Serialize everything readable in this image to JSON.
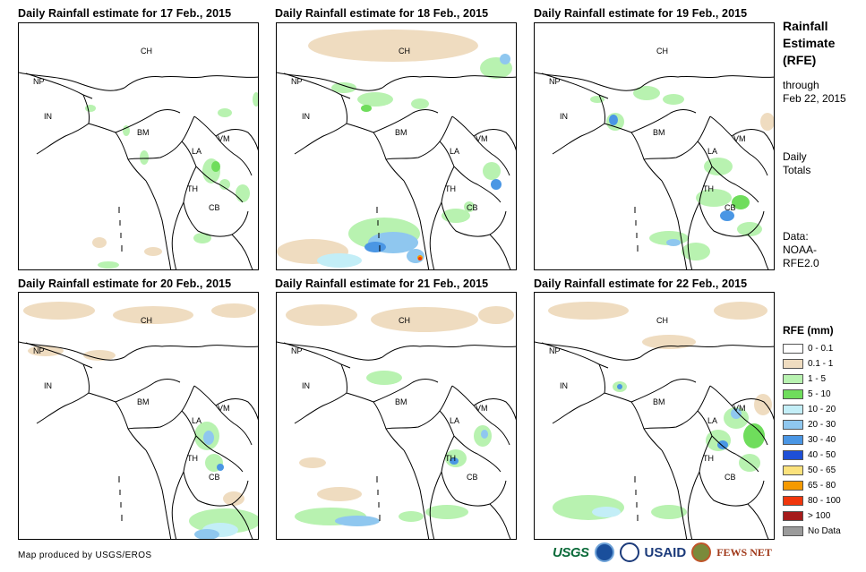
{
  "panels": [
    {
      "title": "Daily Rainfall estimate for 17 Feb., 2015"
    },
    {
      "title": "Daily Rainfall estimate for 18 Feb., 2015"
    },
    {
      "title": "Daily Rainfall estimate for 19 Feb., 2015"
    },
    {
      "title": "Daily Rainfall estimate for 20 Feb., 2015"
    },
    {
      "title": "Daily Rainfall estimate for 21 Feb., 2015"
    },
    {
      "title": "Daily Rainfall estimate for 22 Feb., 2015"
    }
  ],
  "country_labels": {
    "ch": "CH",
    "np": "NP",
    "in": "IN",
    "bm": "BM",
    "la": "LA",
    "vm": "VM",
    "th": "TH",
    "cb": "CB"
  },
  "sidebar": {
    "title_line1": "Rainfall",
    "title_line2": "Estimate",
    "title_line3": "(RFE)",
    "through": "through",
    "through_date": "Feb 22, 2015",
    "daily": "Daily",
    "totals": "Totals",
    "data_label": "Data:",
    "data_source1": "NOAA-",
    "data_source2": "RFE2.0"
  },
  "legend": {
    "title": "RFE (mm)",
    "items": [
      {
        "label": "0 - 0.1",
        "color": "#ffffff"
      },
      {
        "label": "0.1 - 1",
        "color": "#efdcc0"
      },
      {
        "label": "1 - 5",
        "color": "#b8f2b0"
      },
      {
        "label": "5 - 10",
        "color": "#6fdd5c"
      },
      {
        "label": "10 - 20",
        "color": "#c3eef7"
      },
      {
        "label": "20 - 30",
        "color": "#8fc7ef"
      },
      {
        "label": "30 - 40",
        "color": "#4a96e4"
      },
      {
        "label": "40 - 50",
        "color": "#1e4fd6"
      },
      {
        "label": "50 - 65",
        "color": "#fbe27c"
      },
      {
        "label": "65 - 80",
        "color": "#f59a00"
      },
      {
        "label": "80 - 100",
        "color": "#f0360c"
      },
      {
        "label": "> 100",
        "color": "#a51b1b"
      },
      {
        "label": "No Data",
        "color": "#9b9b9b"
      }
    ]
  },
  "footer": {
    "credit": "Map produced by USGS/EROS",
    "logo_usgs": "USGS",
    "logo_usaid": "USAID",
    "logo_fews": "FEWS NET"
  }
}
